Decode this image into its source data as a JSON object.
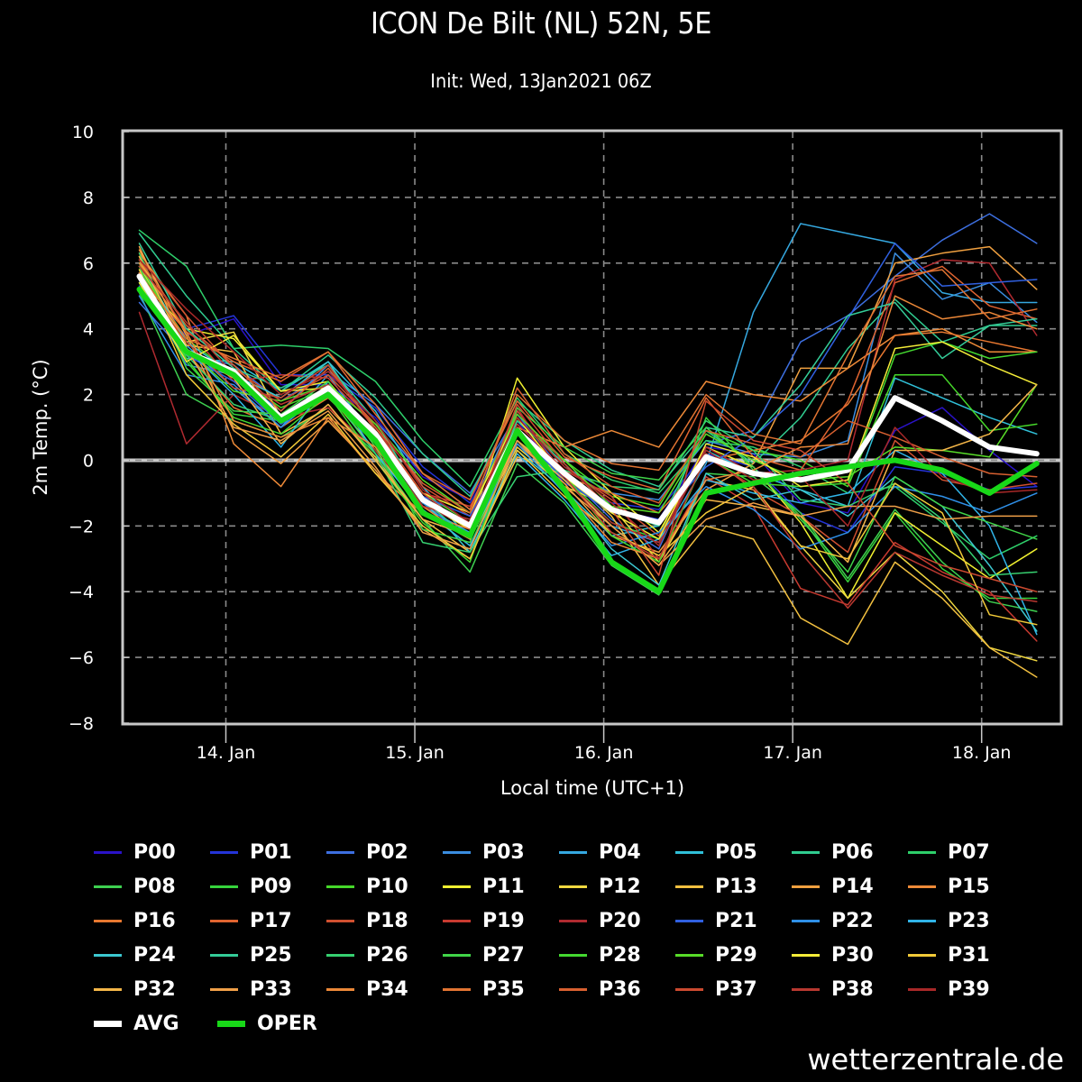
{
  "chart_data": {
    "type": "line",
    "title": "ICON De Bilt (NL) 52N, 5E",
    "subtitle": "Init: Wed, 13Jan2021 06Z",
    "xlabel": "Local time (UTC+1)",
    "ylabel": "2m Temp. (°C)",
    "ylim": [
      -8,
      10
    ],
    "yticks": [
      -8,
      -6,
      -4,
      -2,
      0,
      2,
      4,
      6,
      8,
      10
    ],
    "ytick_labels": [
      "−8",
      "−6",
      "−4",
      "−2",
      "0",
      "2",
      "4",
      "6",
      "8",
      "10"
    ],
    "x_hours_range": [
      11,
      130
    ],
    "x_unit": "hours since 13 Jan 00:00 local",
    "xticks": [
      {
        "hour": 24,
        "label": "14. Jan"
      },
      {
        "hour": 48,
        "label": "15. Jan"
      },
      {
        "hour": 72,
        "label": "16. Jan"
      },
      {
        "hour": 96,
        "label": "17. Jan"
      },
      {
        "hour": 120,
        "label": "18. Jan"
      }
    ],
    "grid": true,
    "legend_position": "bottom",
    "x_hours": [
      13,
      19,
      25,
      31,
      37,
      43,
      49,
      55,
      61,
      67,
      73,
      79,
      85,
      91,
      97,
      103,
      109,
      115,
      121,
      127
    ],
    "series": [
      {
        "name": "P00",
        "color": "#2a12c8",
        "width": 1.5,
        "values": [
          5.0,
          3.8,
          4.3,
          2.3,
          2.3,
          1.3,
          -0.5,
          -1.2,
          1.2,
          -0.6,
          -1.5,
          -1.8,
          0.4,
          0.2,
          -1.3,
          -1.6,
          0.9,
          1.6,
          0.3,
          -0.8
        ]
      },
      {
        "name": "P01",
        "color": "#2434d8",
        "width": 1.5,
        "values": [
          5.2,
          4.0,
          4.4,
          2.6,
          2.6,
          1.6,
          -0.2,
          -1.3,
          1.0,
          -0.7,
          -1.3,
          -1.5,
          0.2,
          -0.2,
          -1.6,
          -2.2,
          -0.2,
          -0.4,
          -0.9,
          -0.8
        ]
      },
      {
        "name": "P02",
        "color": "#3d6fe0",
        "width": 1.5,
        "values": [
          4.8,
          3.2,
          2.9,
          1.8,
          2.7,
          1.7,
          0.2,
          -1.0,
          1.4,
          -0.4,
          -1.8,
          -2.7,
          0.5,
          0.9,
          3.6,
          4.4,
          5.6,
          6.7,
          7.5,
          6.6
        ]
      },
      {
        "name": "P03",
        "color": "#3a8de0",
        "width": 1.5,
        "values": [
          5.5,
          2.9,
          2.6,
          1.5,
          2.9,
          1.2,
          -0.4,
          -1.5,
          1.5,
          -0.2,
          -1.0,
          -1.2,
          0.6,
          0.2,
          0.1,
          0.6,
          6.3,
          4.9,
          5.4,
          4.2
        ]
      },
      {
        "name": "P04",
        "color": "#35a8e0",
        "width": 1.5,
        "values": [
          6.0,
          3.5,
          2.2,
          1.0,
          2.6,
          0.6,
          -1.4,
          -2.2,
          0.8,
          -0.6,
          -2.0,
          -2.5,
          -0.1,
          4.5,
          7.2,
          6.9,
          6.6,
          5.1,
          4.8,
          4.8
        ]
      },
      {
        "name": "P05",
        "color": "#30c0d8",
        "width": 1.5,
        "values": [
          5.7,
          3.1,
          3.0,
          2.1,
          3.0,
          1.5,
          -0.8,
          -2.4,
          0.6,
          -0.9,
          -2.3,
          -2.0,
          0.3,
          -0.4,
          -0.9,
          -1.4,
          2.5,
          1.9,
          1.3,
          0.8
        ]
      },
      {
        "name": "P06",
        "color": "#30cc90",
        "width": 1.5,
        "values": [
          6.9,
          5.0,
          3.4,
          2.1,
          3.2,
          1.9,
          0.2,
          -1.1,
          1.8,
          0.6,
          -0.3,
          -0.8,
          0.9,
          -0.1,
          1.3,
          3.4,
          4.9,
          3.6,
          4.1,
          4.1
        ]
      },
      {
        "name": "P07",
        "color": "#2ecf6a",
        "width": 1.5,
        "values": [
          7.0,
          5.9,
          3.4,
          3.5,
          3.4,
          2.4,
          0.6,
          -0.8,
          1.9,
          0.2,
          -0.6,
          -1.0,
          0.6,
          0.4,
          -0.2,
          -1.0,
          -0.8,
          -1.9,
          -3.0,
          -2.3
        ]
      },
      {
        "name": "P08",
        "color": "#3ed050",
        "width": 1.5,
        "values": [
          5.1,
          2.0,
          1.2,
          0.7,
          1.6,
          0.2,
          -1.8,
          -3.4,
          -0.1,
          -1.3,
          -3.2,
          -4.1,
          -0.4,
          -0.5,
          -1.6,
          -3.6,
          -1.5,
          -3.1,
          -4.3,
          -4.6
        ]
      },
      {
        "name": "P09",
        "color": "#36d43c",
        "width": 1.5,
        "values": [
          6.2,
          3.0,
          1.4,
          1.2,
          1.9,
          0.5,
          -1.5,
          -2.6,
          0.6,
          -0.5,
          -1.9,
          -2.4,
          1.3,
          -0.3,
          -1.7,
          -3.7,
          -1.6,
          -3.3,
          -4.2,
          -4.2
        ]
      },
      {
        "name": "P10",
        "color": "#46d82a",
        "width": 1.5,
        "values": [
          5.8,
          3.7,
          2.6,
          1.6,
          2.2,
          0.9,
          -1.0,
          -1.9,
          1.2,
          0.0,
          -1.1,
          -1.4,
          0.9,
          0.3,
          0.0,
          -0.8,
          2.6,
          2.6,
          0.9,
          1.1
        ]
      },
      {
        "name": "P11",
        "color": "#f0f030",
        "width": 1.5,
        "values": [
          5.5,
          4.0,
          3.7,
          2.1,
          2.4,
          0.7,
          -1.3,
          -2.1,
          2.5,
          0.4,
          -1.0,
          -2.2,
          0.4,
          -0.2,
          -1.9,
          -4.2,
          -1.6,
          -2.6,
          -3.6,
          -2.7
        ]
      },
      {
        "name": "P12",
        "color": "#f0d840",
        "width": 1.5,
        "values": [
          5.9,
          3.6,
          3.9,
          1.3,
          2.0,
          0.3,
          -1.6,
          -2.4,
          0.4,
          -0.8,
          -1.4,
          -3.1,
          -0.6,
          -0.9,
          -2.6,
          -4.2,
          -2.8,
          -4.0,
          -5.7,
          -6.1
        ]
      },
      {
        "name": "P13",
        "color": "#f2c040",
        "width": 1.5,
        "values": [
          6.1,
          3.5,
          3.3,
          0.8,
          1.6,
          0.1,
          -1.8,
          -2.8,
          0.1,
          -0.3,
          -1.7,
          -3.8,
          -2.0,
          -2.4,
          -4.8,
          -5.6,
          -3.1,
          -4.2,
          -5.7,
          -6.6
        ]
      },
      {
        "name": "P14",
        "color": "#f0a040",
        "width": 1.5,
        "values": [
          6.4,
          3.8,
          0.9,
          -0.1,
          1.2,
          -0.3,
          -2.1,
          -3.0,
          0.5,
          -0.7,
          -2.3,
          -2.8,
          -0.9,
          -0.1,
          2.8,
          2.8,
          6.0,
          6.3,
          6.5,
          5.2
        ]
      },
      {
        "name": "P15",
        "color": "#ee8a38",
        "width": 1.5,
        "values": [
          6.3,
          4.4,
          0.5,
          -0.8,
          1.3,
          -0.4,
          -1.6,
          -2.1,
          1.0,
          0.4,
          0.9,
          0.4,
          2.4,
          2.0,
          1.8,
          2.8,
          3.8,
          4.0,
          3.3,
          3.3
        ]
      },
      {
        "name": "P16",
        "color": "#e87830",
        "width": 1.5,
        "values": [
          5.7,
          3.3,
          1.6,
          1.0,
          1.9,
          0.6,
          -1.2,
          -1.9,
          0.8,
          -0.5,
          -1.0,
          -1.6,
          0.0,
          0.3,
          0.6,
          1.7,
          3.8,
          3.9,
          3.6,
          3.3
        ]
      },
      {
        "name": "P17",
        "color": "#e06430",
        "width": 1.5,
        "values": [
          5.6,
          3.9,
          3.0,
          2.4,
          3.3,
          1.4,
          -0.4,
          -1.2,
          1.8,
          0.1,
          -0.5,
          -0.9,
          1.9,
          0.1,
          -0.3,
          1.8,
          5.4,
          5.9,
          4.7,
          4.3
        ]
      },
      {
        "name": "P18",
        "color": "#d05030",
        "width": 1.5,
        "values": [
          6.2,
          4.4,
          2.8,
          1.8,
          2.6,
          1.1,
          -0.8,
          -1.7,
          1.5,
          -0.2,
          -1.2,
          -2.3,
          0.2,
          -0.9,
          -1.7,
          -2.8,
          0.6,
          -0.6,
          -0.9,
          -0.7
        ]
      },
      {
        "name": "P19",
        "color": "#c83a30",
        "width": 1.5,
        "values": [
          5.9,
          4.0,
          2.4,
          2.6,
          2.5,
          1.0,
          -1.0,
          -1.4,
          1.1,
          -0.3,
          -1.1,
          -3.0,
          -0.5,
          -1.4,
          -3.9,
          -4.4,
          -2.5,
          -3.4,
          -4.0,
          -5.5
        ]
      },
      {
        "name": "P20",
        "color": "#b02a30",
        "width": 1.5,
        "values": [
          4.5,
          0.5,
          2.0,
          1.3,
          1.6,
          0.3,
          -1.4,
          -2.0,
          1.6,
          -0.6,
          -1.9,
          -2.5,
          0.4,
          -0.4,
          -0.3,
          0.0,
          5.5,
          6.1,
          6.0,
          3.8
        ]
      },
      {
        "name": "P21",
        "color": "#3060e0",
        "width": 1.5,
        "values": [
          5.3,
          3.2,
          2.4,
          1.1,
          2.1,
          0.8,
          -1.1,
          -1.7,
          0.9,
          -0.6,
          -1.6,
          -1.8,
          -0.2,
          0.7,
          2.0,
          4.3,
          6.6,
          5.3,
          5.4,
          5.5
        ]
      },
      {
        "name": "P22",
        "color": "#2f90e8",
        "width": 1.5,
        "values": [
          5.0,
          2.6,
          2.3,
          1.0,
          2.2,
          0.7,
          -1.3,
          -2.4,
          0.5,
          -1.0,
          -2.6,
          -2.2,
          -0.8,
          -1.5,
          -2.7,
          -2.2,
          -0.8,
          -1.1,
          -1.6,
          -1.0
        ]
      },
      {
        "name": "P23",
        "color": "#30b4e8",
        "width": 1.5,
        "values": [
          5.4,
          3.4,
          2.0,
          0.4,
          2.4,
          0.2,
          -1.5,
          -2.6,
          0.2,
          -1.2,
          -2.9,
          -2.4,
          -0.6,
          -1.0,
          -1.3,
          -1.0,
          0.3,
          -0.4,
          -2.0,
          -5.3
        ]
      },
      {
        "name": "P24",
        "color": "#3cc8d0",
        "width": 1.5,
        "values": [
          6.0,
          3.6,
          2.6,
          1.9,
          3.0,
          0.9,
          -1.2,
          -2.8,
          0.3,
          -0.9,
          -2.7,
          -3.8,
          -0.4,
          -1.2,
          -0.9,
          -1.7,
          -0.5,
          -1.4,
          -3.2,
          -5.2
        ]
      },
      {
        "name": "P25",
        "color": "#34cc98",
        "width": 1.5,
        "values": [
          6.6,
          4.0,
          2.8,
          2.2,
          2.9,
          1.2,
          -1.2,
          -2.4,
          1.2,
          -0.1,
          -1.5,
          -2.0,
          1.0,
          0.7,
          2.3,
          4.4,
          4.8,
          3.1,
          4.1,
          4.3
        ]
      },
      {
        "name": "P26",
        "color": "#36d070",
        "width": 1.5,
        "values": [
          6.3,
          3.2,
          1.7,
          1.2,
          2.1,
          0.2,
          -2.5,
          -2.8,
          -0.5,
          -0.3,
          -0.8,
          -0.9,
          1.2,
          0.3,
          -1.2,
          -1.4,
          -0.7,
          -1.8,
          -3.5,
          -3.4
        ]
      },
      {
        "name": "P27",
        "color": "#40d448",
        "width": 1.5,
        "values": [
          5.9,
          2.8,
          1.5,
          1.4,
          2.4,
          0.4,
          -2.1,
          -2.5,
          1.6,
          0.4,
          -0.4,
          -0.6,
          1.0,
          -0.2,
          -1.8,
          -3.4,
          -0.5,
          -1.4,
          -1.9,
          -2.4
        ]
      },
      {
        "name": "P28",
        "color": "#44d830",
        "width": 1.5,
        "values": [
          5.6,
          3.1,
          1.3,
          0.8,
          2.0,
          0.0,
          -1.9,
          -3.1,
          0.9,
          -0.4,
          -2.3,
          -3.1,
          0.1,
          -0.7,
          -0.8,
          -0.7,
          3.2,
          3.6,
          3.1,
          3.3
        ]
      },
      {
        "name": "P29",
        "color": "#58dc28",
        "width": 1.5,
        "values": [
          6.0,
          3.4,
          2.1,
          1.8,
          2.3,
          1.1,
          -0.6,
          -1.6,
          1.4,
          0.0,
          -1.4,
          -1.6,
          0.8,
          0.0,
          -0.6,
          -0.5,
          0.4,
          0.3,
          0.1,
          2.3
        ]
      },
      {
        "name": "P30",
        "color": "#f4ec38",
        "width": 1.5,
        "values": [
          5.4,
          3.0,
          3.8,
          2.1,
          2.2,
          0.9,
          -1.0,
          -1.6,
          1.3,
          -0.5,
          -1.6,
          -2.4,
          0.5,
          0.1,
          -0.8,
          -0.6,
          3.4,
          3.6,
          2.9,
          2.3
        ]
      },
      {
        "name": "P31",
        "color": "#f2ca38",
        "width": 1.5,
        "values": [
          5.8,
          2.6,
          1.1,
          0.1,
          1.4,
          -0.4,
          -2.0,
          -3.0,
          0.3,
          -1.1,
          -2.2,
          -2.9,
          -1.6,
          -0.8,
          -2.6,
          -3.0,
          -0.7,
          -1.6,
          -4.7,
          -5.0
        ]
      },
      {
        "name": "P32",
        "color": "#f4b648",
        "width": 1.5,
        "values": [
          6.2,
          3.3,
          2.5,
          0.5,
          1.7,
          0.0,
          -1.8,
          -2.3,
          0.6,
          -0.6,
          -2.0,
          -3.2,
          -1.2,
          -1.4,
          -1.7,
          -3.1,
          0.3,
          0.3,
          0.8,
          2.3
        ]
      },
      {
        "name": "P33",
        "color": "#f0a048",
        "width": 1.5,
        "values": [
          6.5,
          3.4,
          1.0,
          0.6,
          1.5,
          -0.2,
          -2.2,
          -2.7,
          0.6,
          -0.8,
          -2.0,
          -3.2,
          -1.8,
          -1.3,
          -1.7,
          -1.4,
          -1.4,
          -1.8,
          -1.7,
          -1.7
        ]
      },
      {
        "name": "P34",
        "color": "#ec8838",
        "width": 1.5,
        "values": [
          6.0,
          3.9,
          1.2,
          0.7,
          1.3,
          0.4,
          -1.4,
          -2.4,
          1.0,
          -0.9,
          -2.5,
          -3.0,
          -0.6,
          -0.3,
          0.4,
          0.5,
          5.0,
          4.3,
          4.5,
          4.0
        ]
      },
      {
        "name": "P35",
        "color": "#e27432",
        "width": 1.5,
        "values": [
          5.7,
          3.7,
          3.1,
          2.5,
          3.3,
          1.7,
          -0.4,
          -1.5,
          2.0,
          0.6,
          -0.1,
          -0.3,
          2.0,
          0.8,
          0.5,
          3.2,
          5.6,
          5.8,
          4.3,
          4.6
        ]
      },
      {
        "name": "P36",
        "color": "#d86030",
        "width": 1.5,
        "values": [
          6.1,
          4.1,
          2.9,
          1.5,
          2.8,
          1.0,
          -0.7,
          -1.6,
          2.2,
          0.2,
          -0.8,
          -1.3,
          0.9,
          0.5,
          0.1,
          1.2,
          0.7,
          0.1,
          -0.4,
          -0.5
        ]
      },
      {
        "name": "P37",
        "color": "#cc4a30",
        "width": 1.5,
        "values": [
          5.5,
          3.6,
          2.2,
          1.9,
          2.9,
          0.9,
          -1.0,
          -2.1,
          1.7,
          -0.1,
          -1.5,
          -3.5,
          1.8,
          0.6,
          0.3,
          -0.7,
          -2.6,
          -3.2,
          -3.6,
          -4.0
        ]
      },
      {
        "name": "P38",
        "color": "#b83830",
        "width": 1.5,
        "values": [
          5.9,
          4.2,
          2.6,
          1.7,
          2.3,
          0.6,
          -1.4,
          -1.8,
          1.0,
          -0.5,
          -2.2,
          -3.0,
          0.1,
          -0.8,
          -2.8,
          -4.5,
          -2.8,
          -3.5,
          -4.1,
          -4.3
        ]
      },
      {
        "name": "P39",
        "color": "#a82828",
        "width": 1.5,
        "values": [
          6.1,
          4.6,
          3.3,
          2.0,
          2.7,
          1.2,
          -0.9,
          -1.9,
          1.3,
          -0.2,
          -1.3,
          -2.6,
          0.3,
          -0.6,
          -0.5,
          -2.0,
          1.0,
          -0.5,
          -1.0,
          -0.9
        ]
      },
      {
        "name": "AVG",
        "color": "#ffffff",
        "width": 6,
        "values": [
          5.6,
          3.3,
          2.7,
          1.3,
          2.2,
          0.8,
          -1.2,
          -2.0,
          0.9,
          -0.4,
          -1.5,
          -1.9,
          0.1,
          -0.4,
          -0.6,
          -0.3,
          1.9,
          1.2,
          0.4,
          0.2
        ]
      },
      {
        "name": "OPER",
        "color": "#18d818",
        "width": 6,
        "values": [
          5.2,
          3.3,
          2.6,
          1.2,
          2.0,
          0.6,
          -1.6,
          -2.3,
          0.9,
          -0.9,
          -3.1,
          -4.0,
          -1.0,
          -0.7,
          -0.4,
          -0.2,
          0.0,
          -0.3,
          -1.0,
          -0.1
        ]
      }
    ]
  },
  "footer": {
    "brand": "wetterzentrale.de"
  }
}
